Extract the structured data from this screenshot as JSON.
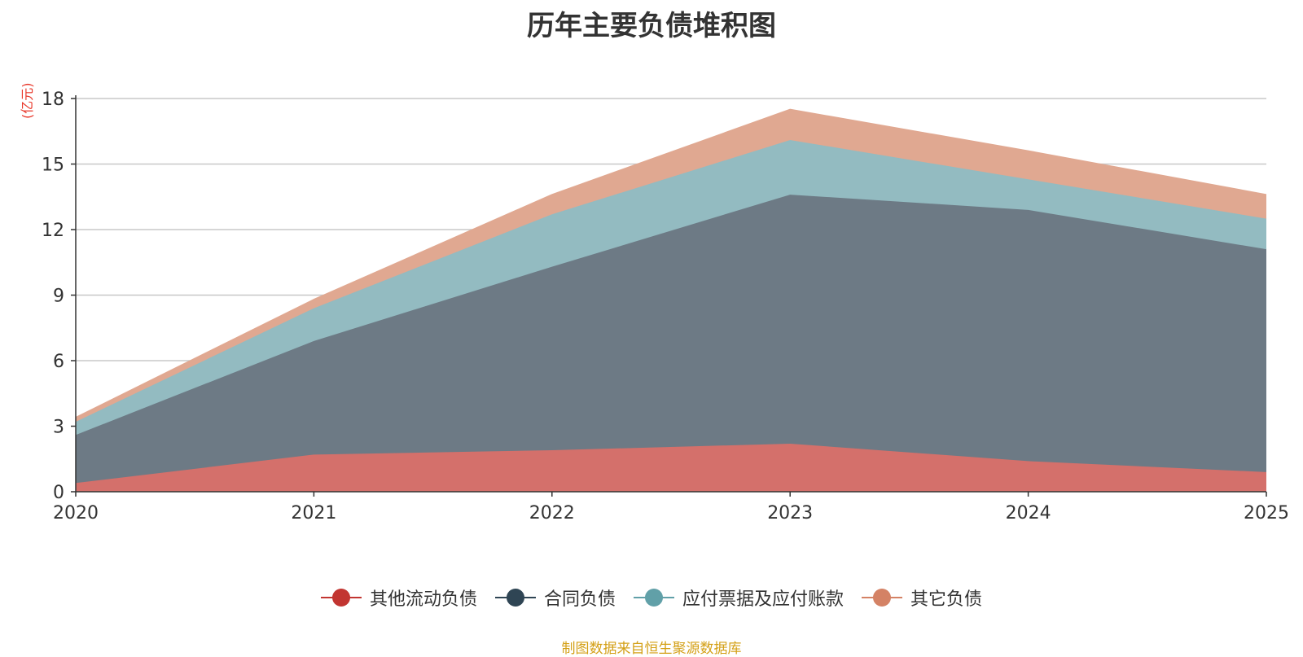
{
  "chart_data": {
    "type": "area",
    "stacked": true,
    "title": "历年主要负债堆积图",
    "unit_label": "(亿元)",
    "x": [
      "2020",
      "2021",
      "2022",
      "2023",
      "2024",
      "2025"
    ],
    "ylim": [
      0,
      18
    ],
    "yticks": [
      0,
      3,
      6,
      9,
      12,
      15,
      18
    ],
    "grid": true,
    "legend_position": "bottom",
    "series": [
      {
        "name": "其他流动负债",
        "color": "#c23531",
        "fill": "#d4706b",
        "values": [
          0.4,
          1.7,
          1.9,
          2.2,
          1.4,
          0.9
        ]
      },
      {
        "name": "合同负债",
        "color": "#2f4554",
        "fill": "#6d7a85",
        "values": [
          2.2,
          5.2,
          8.4,
          11.4,
          11.5,
          10.2
        ]
      },
      {
        "name": "应付票据及应付账款",
        "color": "#61a0a8",
        "fill": "#93bbc1",
        "values": [
          0.6,
          1.5,
          2.4,
          2.5,
          1.4,
          1.4
        ]
      },
      {
        "name": "其它负债",
        "color": "#d48265",
        "fill": "#e0a891",
        "values": [
          0.2,
          0.4,
          0.9,
          1.4,
          1.3,
          1.1
        ]
      }
    ]
  },
  "source_note": "制图数据来自恒生聚源数据库"
}
